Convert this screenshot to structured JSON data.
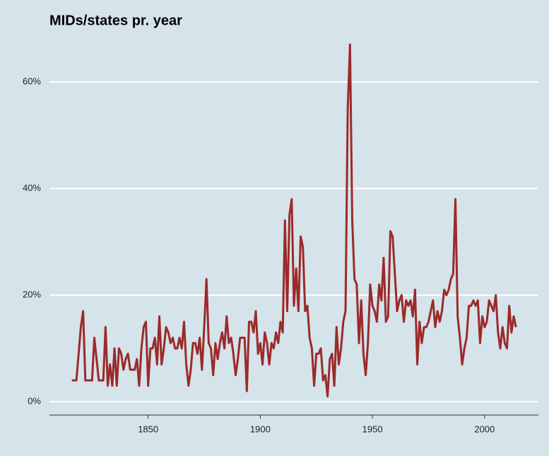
{
  "chart_data": {
    "type": "line",
    "title": "MIDs/states pr. year",
    "color": "#9b2a2a",
    "grid": true,
    "x": [
      1816,
      1817,
      1818,
      1819,
      1820,
      1821,
      1822,
      1823,
      1824,
      1825,
      1826,
      1827,
      1828,
      1829,
      1830,
      1831,
      1832,
      1833,
      1834,
      1835,
      1836,
      1837,
      1838,
      1839,
      1840,
      1841,
      1842,
      1843,
      1844,
      1845,
      1846,
      1847,
      1848,
      1849,
      1850,
      1851,
      1852,
      1853,
      1854,
      1855,
      1856,
      1857,
      1858,
      1859,
      1860,
      1861,
      1862,
      1863,
      1864,
      1865,
      1866,
      1867,
      1868,
      1869,
      1870,
      1871,
      1872,
      1873,
      1874,
      1875,
      1876,
      1877,
      1878,
      1879,
      1880,
      1881,
      1882,
      1883,
      1884,
      1885,
      1886,
      1887,
      1888,
      1889,
      1890,
      1891,
      1892,
      1893,
      1894,
      1895,
      1896,
      1897,
      1898,
      1899,
      1900,
      1901,
      1902,
      1903,
      1904,
      1905,
      1906,
      1907,
      1908,
      1909,
      1910,
      1911,
      1912,
      1913,
      1914,
      1915,
      1916,
      1917,
      1918,
      1919,
      1920,
      1921,
      1922,
      1923,
      1924,
      1925,
      1926,
      1927,
      1928,
      1929,
      1930,
      1931,
      1932,
      1933,
      1934,
      1935,
      1936,
      1937,
      1938,
      1939,
      1940,
      1941,
      1942,
      1943,
      1944,
      1945,
      1946,
      1947,
      1948,
      1949,
      1950,
      1951,
      1952,
      1953,
      1954,
      1955,
      1956,
      1957,
      1958,
      1959,
      1960,
      1961,
      1962,
      1963,
      1964,
      1965,
      1966,
      1967,
      1968,
      1969,
      1970,
      1971,
      1972,
      1973,
      1974,
      1975,
      1976,
      1977,
      1978,
      1979,
      1980,
      1981,
      1982,
      1983,
      1984,
      1985,
      1986,
      1987,
      1988,
      1989,
      1990,
      1991,
      1992,
      1993,
      1994,
      1995,
      1996,
      1997,
      1998,
      1999,
      2000,
      2001,
      2002,
      2003,
      2004,
      2005,
      2006,
      2007,
      2008,
      2009,
      2010,
      2011,
      2012,
      2013,
      2014
    ],
    "values": [
      4,
      4,
      4,
      9,
      14,
      17,
      4,
      4,
      4,
      4,
      12,
      8,
      4,
      4,
      4,
      14,
      3,
      7,
      3,
      10,
      3,
      10,
      9,
      6,
      8,
      9,
      6,
      6,
      6,
      8,
      3,
      10,
      14,
      15,
      3,
      10,
      10,
      12,
      7,
      16,
      7,
      10,
      14,
      13,
      11,
      12,
      10,
      10,
      12,
      10,
      15,
      7,
      3,
      6,
      11,
      11,
      9,
      12,
      6,
      14,
      23,
      11,
      10,
      5,
      11,
      8,
      11,
      13,
      10,
      16,
      11,
      12,
      9,
      5,
      8,
      12,
      12,
      12,
      2,
      15,
      15,
      13,
      17,
      9,
      11,
      7,
      13,
      11,
      7,
      11,
      10,
      13,
      11,
      15,
      13,
      34,
      17,
      35,
      38,
      18,
      25,
      17,
      31,
      29,
      17,
      18,
      12,
      10,
      3,
      9,
      9,
      10,
      4,
      5,
      1,
      8,
      9,
      3,
      14,
      7,
      10,
      15,
      17,
      55,
      67,
      34,
      23,
      22,
      11,
      19,
      9,
      5,
      11,
      22,
      18,
      17,
      15,
      22,
      19,
      27,
      15,
      16,
      32,
      31,
      24,
      17,
      19,
      20,
      15,
      19,
      18,
      19,
      16,
      21,
      7,
      15,
      11,
      14,
      14,
      15,
      17,
      19,
      14,
      17,
      15,
      17,
      21,
      20,
      21,
      23,
      24,
      38,
      16,
      12,
      7,
      10,
      12,
      18,
      18,
      19,
      18,
      19,
      11,
      16,
      14,
      15,
      19,
      18,
      17,
      20,
      13,
      10,
      14,
      11,
      10,
      18,
      13,
      16,
      14
    ],
    "xlim": [
      1806,
      2024
    ],
    "xticks": [
      1850,
      1900,
      1950,
      2000
    ],
    "ylim": [
      -2.5,
      70
    ],
    "yticks": [
      {
        "value": 0,
        "label": "0%"
      },
      {
        "value": 20,
        "label": "20%"
      },
      {
        "value": 40,
        "label": "40%"
      },
      {
        "value": 60,
        "label": "60%"
      }
    ]
  }
}
